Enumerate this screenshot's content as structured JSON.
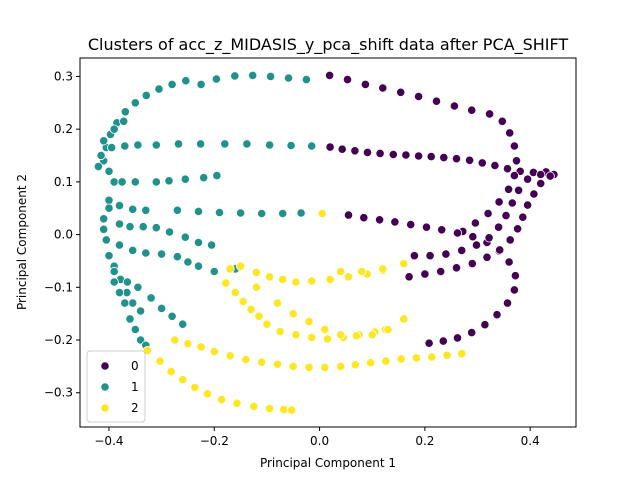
{
  "chart_data": {
    "type": "scatter",
    "title": "Clusters of acc_z_MIDASIS_y_pca_shift data after PCA_SHIFT",
    "xlabel": "Principal Component 1",
    "ylabel": "Principal Component 2",
    "xlim": [
      -0.455,
      0.487
    ],
    "ylim": [
      -0.365,
      0.335
    ],
    "xticks": [
      -0.4,
      -0.2,
      0.0,
      0.2,
      0.4
    ],
    "yticks": [
      -0.3,
      -0.2,
      -0.1,
      0.0,
      0.1,
      0.2,
      0.3
    ],
    "xtick_labels": [
      "−0.4",
      "−0.2",
      "0.0",
      "0.2",
      "0.4"
    ],
    "ytick_labels": [
      "−0.3",
      "−0.2",
      "−0.1",
      "0.0",
      "0.1",
      "0.2",
      "0.3"
    ],
    "grid": false,
    "legend": {
      "placement": "lower-left",
      "entries": [
        "0",
        "1",
        "2"
      ]
    },
    "series": [
      {
        "name": "0",
        "color": "#440154",
        "points": [
          [
            0.02,
            0.166
          ],
          [
            0.043,
            0.162
          ],
          [
            0.067,
            0.159
          ],
          [
            0.091,
            0.156
          ],
          [
            0.115,
            0.154
          ],
          [
            0.14,
            0.152
          ],
          [
            0.164,
            0.151
          ],
          [
            0.188,
            0.149
          ],
          [
            0.212,
            0.148
          ],
          [
            0.236,
            0.146
          ],
          [
            0.26,
            0.144
          ],
          [
            0.285,
            0.141
          ],
          [
            0.309,
            0.136
          ],
          [
            0.333,
            0.131
          ],
          [
            0.357,
            0.125
          ],
          [
            0.381,
            0.12
          ],
          [
            0.406,
            0.118
          ],
          [
            0.43,
            0.119
          ],
          [
            0.445,
            0.114
          ],
          [
            0.019,
            0.302
          ],
          [
            0.053,
            0.294
          ],
          [
            0.087,
            0.285
          ],
          [
            0.12,
            0.278
          ],
          [
            0.154,
            0.27
          ],
          [
            0.188,
            0.262
          ],
          [
            0.222,
            0.253
          ],
          [
            0.256,
            0.244
          ],
          [
            0.289,
            0.236
          ],
          [
            0.323,
            0.229
          ],
          [
            0.347,
            0.215
          ],
          [
            0.361,
            0.193
          ],
          [
            0.37,
            0.168
          ],
          [
            0.374,
            0.14
          ],
          [
            0.37,
            0.112
          ],
          [
            0.359,
            0.086
          ],
          [
            0.341,
            0.062
          ],
          [
            0.32,
            0.04
          ],
          [
            0.296,
            0.022
          ],
          [
            0.272,
            0.006
          ],
          [
            0.055,
            0.037
          ],
          [
            0.084,
            0.032
          ],
          [
            0.114,
            0.028
          ],
          [
            0.143,
            0.024
          ],
          [
            0.173,
            0.019
          ],
          [
            0.203,
            0.014
          ],
          [
            0.232,
            0.009
          ],
          [
            0.262,
            0.003
          ],
          [
            0.291,
            -0.004
          ],
          [
            0.318,
            -0.015
          ],
          [
            0.341,
            -0.031
          ],
          [
            0.36,
            -0.052
          ],
          [
            0.372,
            -0.078
          ],
          [
            0.37,
            -0.105
          ],
          [
            0.357,
            -0.13
          ],
          [
            0.337,
            -0.152
          ],
          [
            0.314,
            -0.171
          ],
          [
            0.289,
            -0.186
          ],
          [
            0.262,
            -0.196
          ],
          [
            0.235,
            -0.202
          ],
          [
            0.208,
            -0.206
          ],
          [
            0.17,
            -0.08
          ],
          [
            0.2,
            -0.075
          ],
          [
            0.23,
            -0.07
          ],
          [
            0.26,
            -0.063
          ],
          [
            0.29,
            -0.055
          ],
          [
            0.318,
            -0.043
          ],
          [
            0.342,
            -0.029
          ],
          [
            0.362,
            -0.01
          ],
          [
            0.376,
            0.011
          ],
          [
            0.386,
            0.033
          ],
          [
            0.395,
            0.056
          ],
          [
            0.407,
            0.077
          ],
          [
            0.42,
            0.097
          ],
          [
            0.438,
            0.111
          ],
          [
            0.18,
            -0.04
          ],
          [
            0.21,
            -0.04
          ],
          [
            0.24,
            -0.037
          ],
          [
            0.27,
            -0.03
          ],
          [
            0.298,
            -0.02
          ],
          [
            0.322,
            -0.006
          ],
          [
            0.34,
            0.014
          ],
          [
            0.354,
            0.036
          ],
          [
            0.366,
            0.06
          ],
          [
            0.378,
            0.084
          ],
          [
            0.395,
            0.105
          ],
          [
            0.42,
            0.114
          ]
        ]
      },
      {
        "name": "1",
        "color": "#21918c",
        "points": [
          [
            -0.225,
            0.285
          ],
          [
            -0.196,
            0.295
          ],
          [
            -0.161,
            0.301
          ],
          [
            -0.127,
            0.302
          ],
          [
            -0.093,
            0.3
          ],
          [
            -0.059,
            0.297
          ],
          [
            -0.025,
            0.294
          ],
          [
            -0.41,
            0.14
          ],
          [
            -0.405,
            0.165
          ],
          [
            -0.397,
            0.19
          ],
          [
            -0.385,
            0.212
          ],
          [
            -0.369,
            0.233
          ],
          [
            -0.35,
            0.25
          ],
          [
            -0.329,
            0.264
          ],
          [
            -0.305,
            0.276
          ],
          [
            -0.28,
            0.285
          ],
          [
            -0.254,
            0.292
          ],
          [
            -0.395,
            0.165
          ],
          [
            -0.37,
            0.168
          ],
          [
            -0.345,
            0.17
          ],
          [
            -0.31,
            0.17
          ],
          [
            -0.268,
            0.172
          ],
          [
            -0.226,
            0.172
          ],
          [
            -0.18,
            0.172
          ],
          [
            -0.138,
            0.172
          ],
          [
            -0.095,
            0.17
          ],
          [
            -0.054,
            0.169
          ],
          [
            -0.015,
            0.168
          ],
          [
            -0.4,
            0.12
          ],
          [
            -0.42,
            0.129
          ],
          [
            -0.415,
            0.15
          ],
          [
            -0.41,
            0.178
          ],
          [
            -0.39,
            0.2
          ],
          [
            -0.372,
            0.215
          ],
          [
            -0.39,
            0.1
          ],
          [
            -0.375,
            0.1
          ],
          [
            -0.35,
            0.1
          ],
          [
            -0.31,
            0.1
          ],
          [
            -0.286,
            0.102
          ],
          [
            -0.255,
            0.105
          ],
          [
            -0.22,
            0.108
          ],
          [
            -0.195,
            0.112
          ],
          [
            -0.4,
            0.065
          ],
          [
            -0.38,
            0.055
          ],
          [
            -0.355,
            0.048
          ],
          [
            -0.33,
            0.046
          ],
          [
            -0.27,
            0.046
          ],
          [
            -0.23,
            0.044
          ],
          [
            -0.19,
            0.042
          ],
          [
            -0.15,
            0.041
          ],
          [
            -0.11,
            0.04
          ],
          [
            -0.07,
            0.04
          ],
          [
            -0.035,
            0.041
          ],
          [
            -0.4,
            0.05
          ],
          [
            -0.41,
            0.03
          ],
          [
            -0.41,
            0.01
          ],
          [
            -0.405,
            -0.01
          ],
          [
            -0.4,
            -0.04
          ],
          [
            -0.39,
            -0.06
          ],
          [
            -0.378,
            -0.085
          ],
          [
            -0.366,
            -0.11
          ],
          [
            -0.355,
            -0.13
          ],
          [
            -0.34,
            -0.145
          ],
          [
            -0.38,
            0.02
          ],
          [
            -0.36,
            0.015
          ],
          [
            -0.335,
            0.015
          ],
          [
            -0.31,
            0.013
          ],
          [
            -0.285,
            0.005
          ],
          [
            -0.255,
            -0.005
          ],
          [
            -0.23,
            -0.015
          ],
          [
            -0.205,
            -0.02
          ],
          [
            -0.38,
            -0.02
          ],
          [
            -0.355,
            -0.03
          ],
          [
            -0.33,
            -0.035
          ],
          [
            -0.3,
            -0.037
          ],
          [
            -0.27,
            -0.042
          ],
          [
            -0.25,
            -0.052
          ],
          [
            -0.23,
            -0.06
          ],
          [
            -0.2,
            -0.07
          ],
          [
            -0.16,
            -0.065
          ],
          [
            -0.39,
            -0.09
          ],
          [
            -0.38,
            -0.11
          ],
          [
            -0.37,
            -0.13
          ],
          [
            -0.36,
            -0.16
          ],
          [
            -0.35,
            -0.18
          ],
          [
            -0.34,
            -0.2
          ],
          [
            -0.33,
            -0.21
          ],
          [
            -0.39,
            -0.07
          ],
          [
            -0.365,
            -0.09
          ],
          [
            -0.345,
            -0.1
          ],
          [
            -0.32,
            -0.12
          ],
          [
            -0.3,
            -0.14
          ],
          [
            -0.28,
            -0.155
          ],
          [
            -0.26,
            -0.17
          ]
        ]
      },
      {
        "name": "2",
        "color": "#fde725",
        "points": [
          [
            -0.327,
            -0.22
          ],
          [
            -0.303,
            -0.24
          ],
          [
            -0.282,
            -0.26
          ],
          [
            -0.26,
            -0.275
          ],
          [
            -0.237,
            -0.29
          ],
          [
            -0.213,
            -0.302
          ],
          [
            -0.186,
            -0.313
          ],
          [
            -0.157,
            -0.32
          ],
          [
            -0.125,
            -0.326
          ],
          [
            -0.095,
            -0.33
          ],
          [
            -0.068,
            -0.332
          ],
          [
            -0.053,
            -0.333
          ],
          [
            -0.275,
            -0.2
          ],
          [
            -0.25,
            -0.207
          ],
          [
            -0.225,
            -0.213
          ],
          [
            -0.2,
            -0.222
          ],
          [
            -0.17,
            -0.23
          ],
          [
            -0.14,
            -0.237
          ],
          [
            -0.11,
            -0.242
          ],
          [
            -0.08,
            -0.246
          ],
          [
            -0.05,
            -0.25
          ],
          [
            -0.02,
            -0.252
          ],
          [
            0.01,
            -0.252
          ],
          [
            0.04,
            -0.25
          ],
          [
            0.068,
            -0.247
          ],
          [
            0.097,
            -0.243
          ],
          [
            0.126,
            -0.24
          ],
          [
            0.155,
            -0.236
          ],
          [
            0.184,
            -0.234
          ],
          [
            0.213,
            -0.232
          ],
          [
            0.242,
            -0.229
          ],
          [
            0.27,
            -0.226
          ],
          [
            -0.178,
            -0.092
          ],
          [
            -0.16,
            -0.11
          ],
          [
            -0.145,
            -0.127
          ],
          [
            -0.13,
            -0.142
          ],
          [
            -0.115,
            -0.155
          ],
          [
            -0.1,
            -0.17
          ],
          [
            -0.075,
            -0.184
          ],
          [
            -0.045,
            -0.19
          ],
          [
            -0.015,
            -0.195
          ],
          [
            0.015,
            -0.198
          ],
          [
            0.045,
            -0.195
          ],
          [
            0.075,
            -0.19
          ],
          [
            0.105,
            -0.185
          ],
          [
            0.125,
            -0.18
          ],
          [
            -0.12,
            -0.072
          ],
          [
            -0.095,
            -0.08
          ],
          [
            -0.07,
            -0.085
          ],
          [
            -0.045,
            -0.09
          ],
          [
            -0.015,
            -0.088
          ],
          [
            0.02,
            -0.085
          ],
          [
            0.055,
            -0.08
          ],
          [
            0.09,
            -0.075
          ],
          [
            0.12,
            -0.068
          ],
          [
            0.16,
            -0.055
          ],
          [
            -0.17,
            -0.065
          ],
          [
            -0.15,
            -0.06
          ],
          [
            -0.12,
            -0.1
          ],
          [
            -0.08,
            -0.13
          ],
          [
            -0.05,
            -0.15
          ],
          [
            -0.02,
            -0.165
          ],
          [
            0.01,
            -0.18
          ],
          [
            0.04,
            -0.19
          ],
          [
            0.07,
            -0.192
          ],
          [
            0.1,
            -0.19
          ],
          [
            0.13,
            -0.18
          ],
          [
            0.16,
            -0.16
          ],
          [
            0.005,
            0.04
          ],
          [
            0.04,
            -0.07
          ],
          [
            0.08,
            -0.07
          ],
          [
            0.12,
            -0.065
          ]
        ]
      }
    ]
  }
}
